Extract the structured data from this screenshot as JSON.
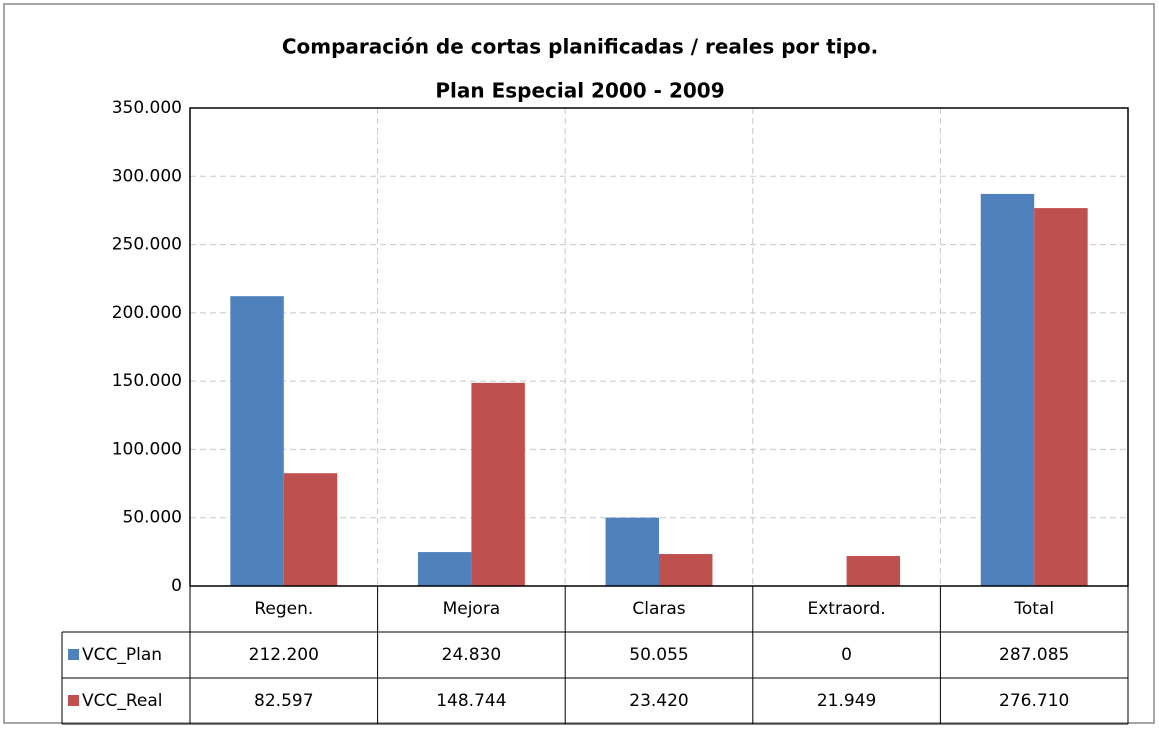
{
  "chart_data": {
    "type": "bar",
    "title": "Comparación de cortas planificadas  / reales por tipo.",
    "subtitle": "Plan Especial  2000 - 2009",
    "categories": [
      "Regen.",
      "Mejora",
      "Claras",
      "Extraord.",
      "Total"
    ],
    "series": [
      {
        "name": "VCC_Plan",
        "color": "#4f81bd",
        "values": [
          212200,
          24830,
          50055,
          0,
          287085
        ],
        "value_labels": [
          "212.200",
          "24.830",
          "50.055",
          "0",
          "287.085"
        ]
      },
      {
        "name": "VCC_Real",
        "color": "#c0504d",
        "values": [
          82597,
          148744,
          23420,
          21949,
          276710
        ],
        "value_labels": [
          "82.597",
          "148.744",
          "23.420",
          "21.949",
          "276.710"
        ]
      }
    ],
    "ylim": [
      0,
      350000
    ],
    "yticks": [
      0,
      {
        "value": 50000,
        "label": "50.000"
      },
      {
        "value": 100000,
        "label": "100.000"
      },
      {
        "value": 150000,
        "label": "150.000"
      },
      {
        "value": 200000,
        "label": "200.000"
      },
      {
        "value": 250000,
        "label": "250.000"
      },
      {
        "value": 300000,
        "label": "300.000"
      },
      {
        "value": 350000,
        "label": "350.000"
      }
    ],
    "grid": true
  }
}
